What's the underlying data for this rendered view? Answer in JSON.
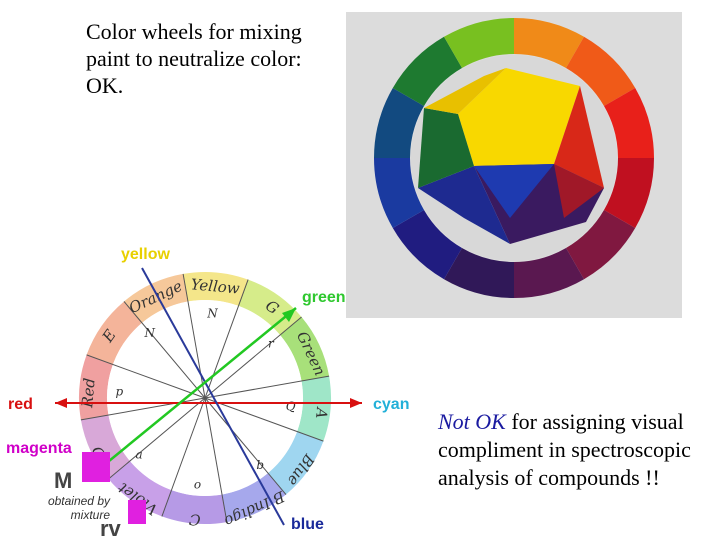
{
  "title": "Color wheels for mixing paint to neutralize color: OK.",
  "note": {
    "emphasis": "Not OK",
    "rest": "for assigning visual compliment in spectroscopic analysis of compounds !!"
  },
  "axis_labels": {
    "yellow": "yellow",
    "green": "green",
    "red": "red",
    "cyan": "cyan",
    "magenta": "magenta",
    "blue": "blue"
  },
  "colors": {
    "yellow_label": "#e8d000",
    "green_label": "#2fc82f",
    "red_label": "#d81010",
    "cyan_label": "#22b0d8",
    "magenta_label": "#d000c8",
    "blue_label": "#1a2a9a",
    "magenta_swatch": "#e020e0"
  },
  "wheel_sectors": [
    {
      "name": "Yellow",
      "color": "#f4e68a"
    },
    {
      "name": "G",
      "color": "#d6ec8a"
    },
    {
      "name": "Green",
      "color": "#a8e07a"
    },
    {
      "name": "A",
      "color": "#9fe6c8"
    },
    {
      "name": "Blue",
      "color": "#9fd6f0"
    },
    {
      "name": "B Indigo",
      "color": "#a6a8ec"
    },
    {
      "name": "C",
      "color": "#b69ae6"
    },
    {
      "name": "Violet",
      "color": "#c8a0e8"
    },
    {
      "name": "D",
      "color": "#d8a8d8"
    },
    {
      "name": "Red",
      "color": "#f0a0a0"
    },
    {
      "name": "E",
      "color": "#f4b49a"
    },
    {
      "name": "Orange",
      "color": "#f6c89a"
    }
  ],
  "wheel_small_letters": [
    "N",
    "r",
    "Q",
    "b",
    "o",
    "a",
    "p",
    "N"
  ],
  "mixture": {
    "m_letter": "M",
    "rv_letter": "rv",
    "text": "obtained by mixture"
  }
}
